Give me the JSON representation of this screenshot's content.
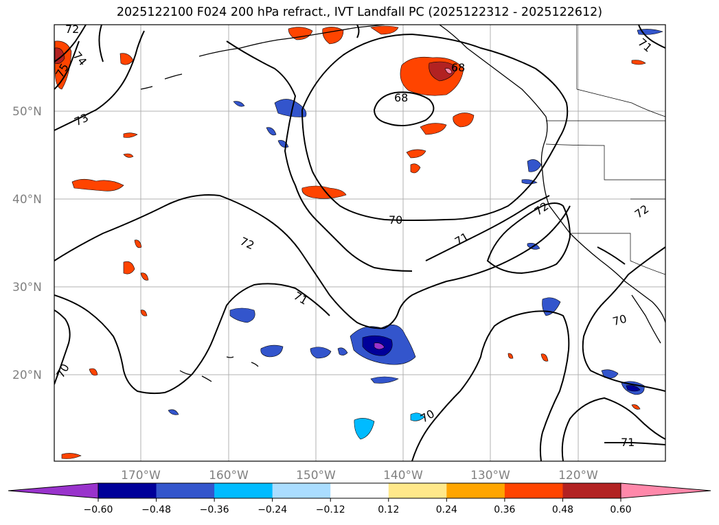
{
  "title": "2025122100 F024 200 hPa refract., IVT Landfall PC (2025122312 - 2025122612)",
  "map": {
    "lat_labels": [
      "50°N",
      "40°N",
      "30°N",
      "20°N"
    ],
    "lon_labels": [
      "170°W",
      "160°W",
      "150°W",
      "140°W",
      "130°W",
      "120°W"
    ],
    "contour_labels": [
      "72",
      "75",
      "74",
      "73",
      "68",
      "68",
      "71",
      "70",
      "71",
      "72",
      "72",
      "72",
      "71",
      "70",
      "70",
      "70",
      "71"
    ]
  },
  "colorbar": {
    "ticks": [
      "−0.60",
      "−0.48",
      "−0.36",
      "−0.24",
      "−0.12",
      "0.12",
      "0.24",
      "0.36",
      "0.48",
      "0.60"
    ],
    "colors": [
      "#9933cc",
      "#000099",
      "#3355cc",
      "#00bbff",
      "#aaddff",
      "#ffffff",
      "#ffe88a",
      "#ffa500",
      "#ff4400",
      "#b22222",
      "#ff88aa"
    ]
  }
}
